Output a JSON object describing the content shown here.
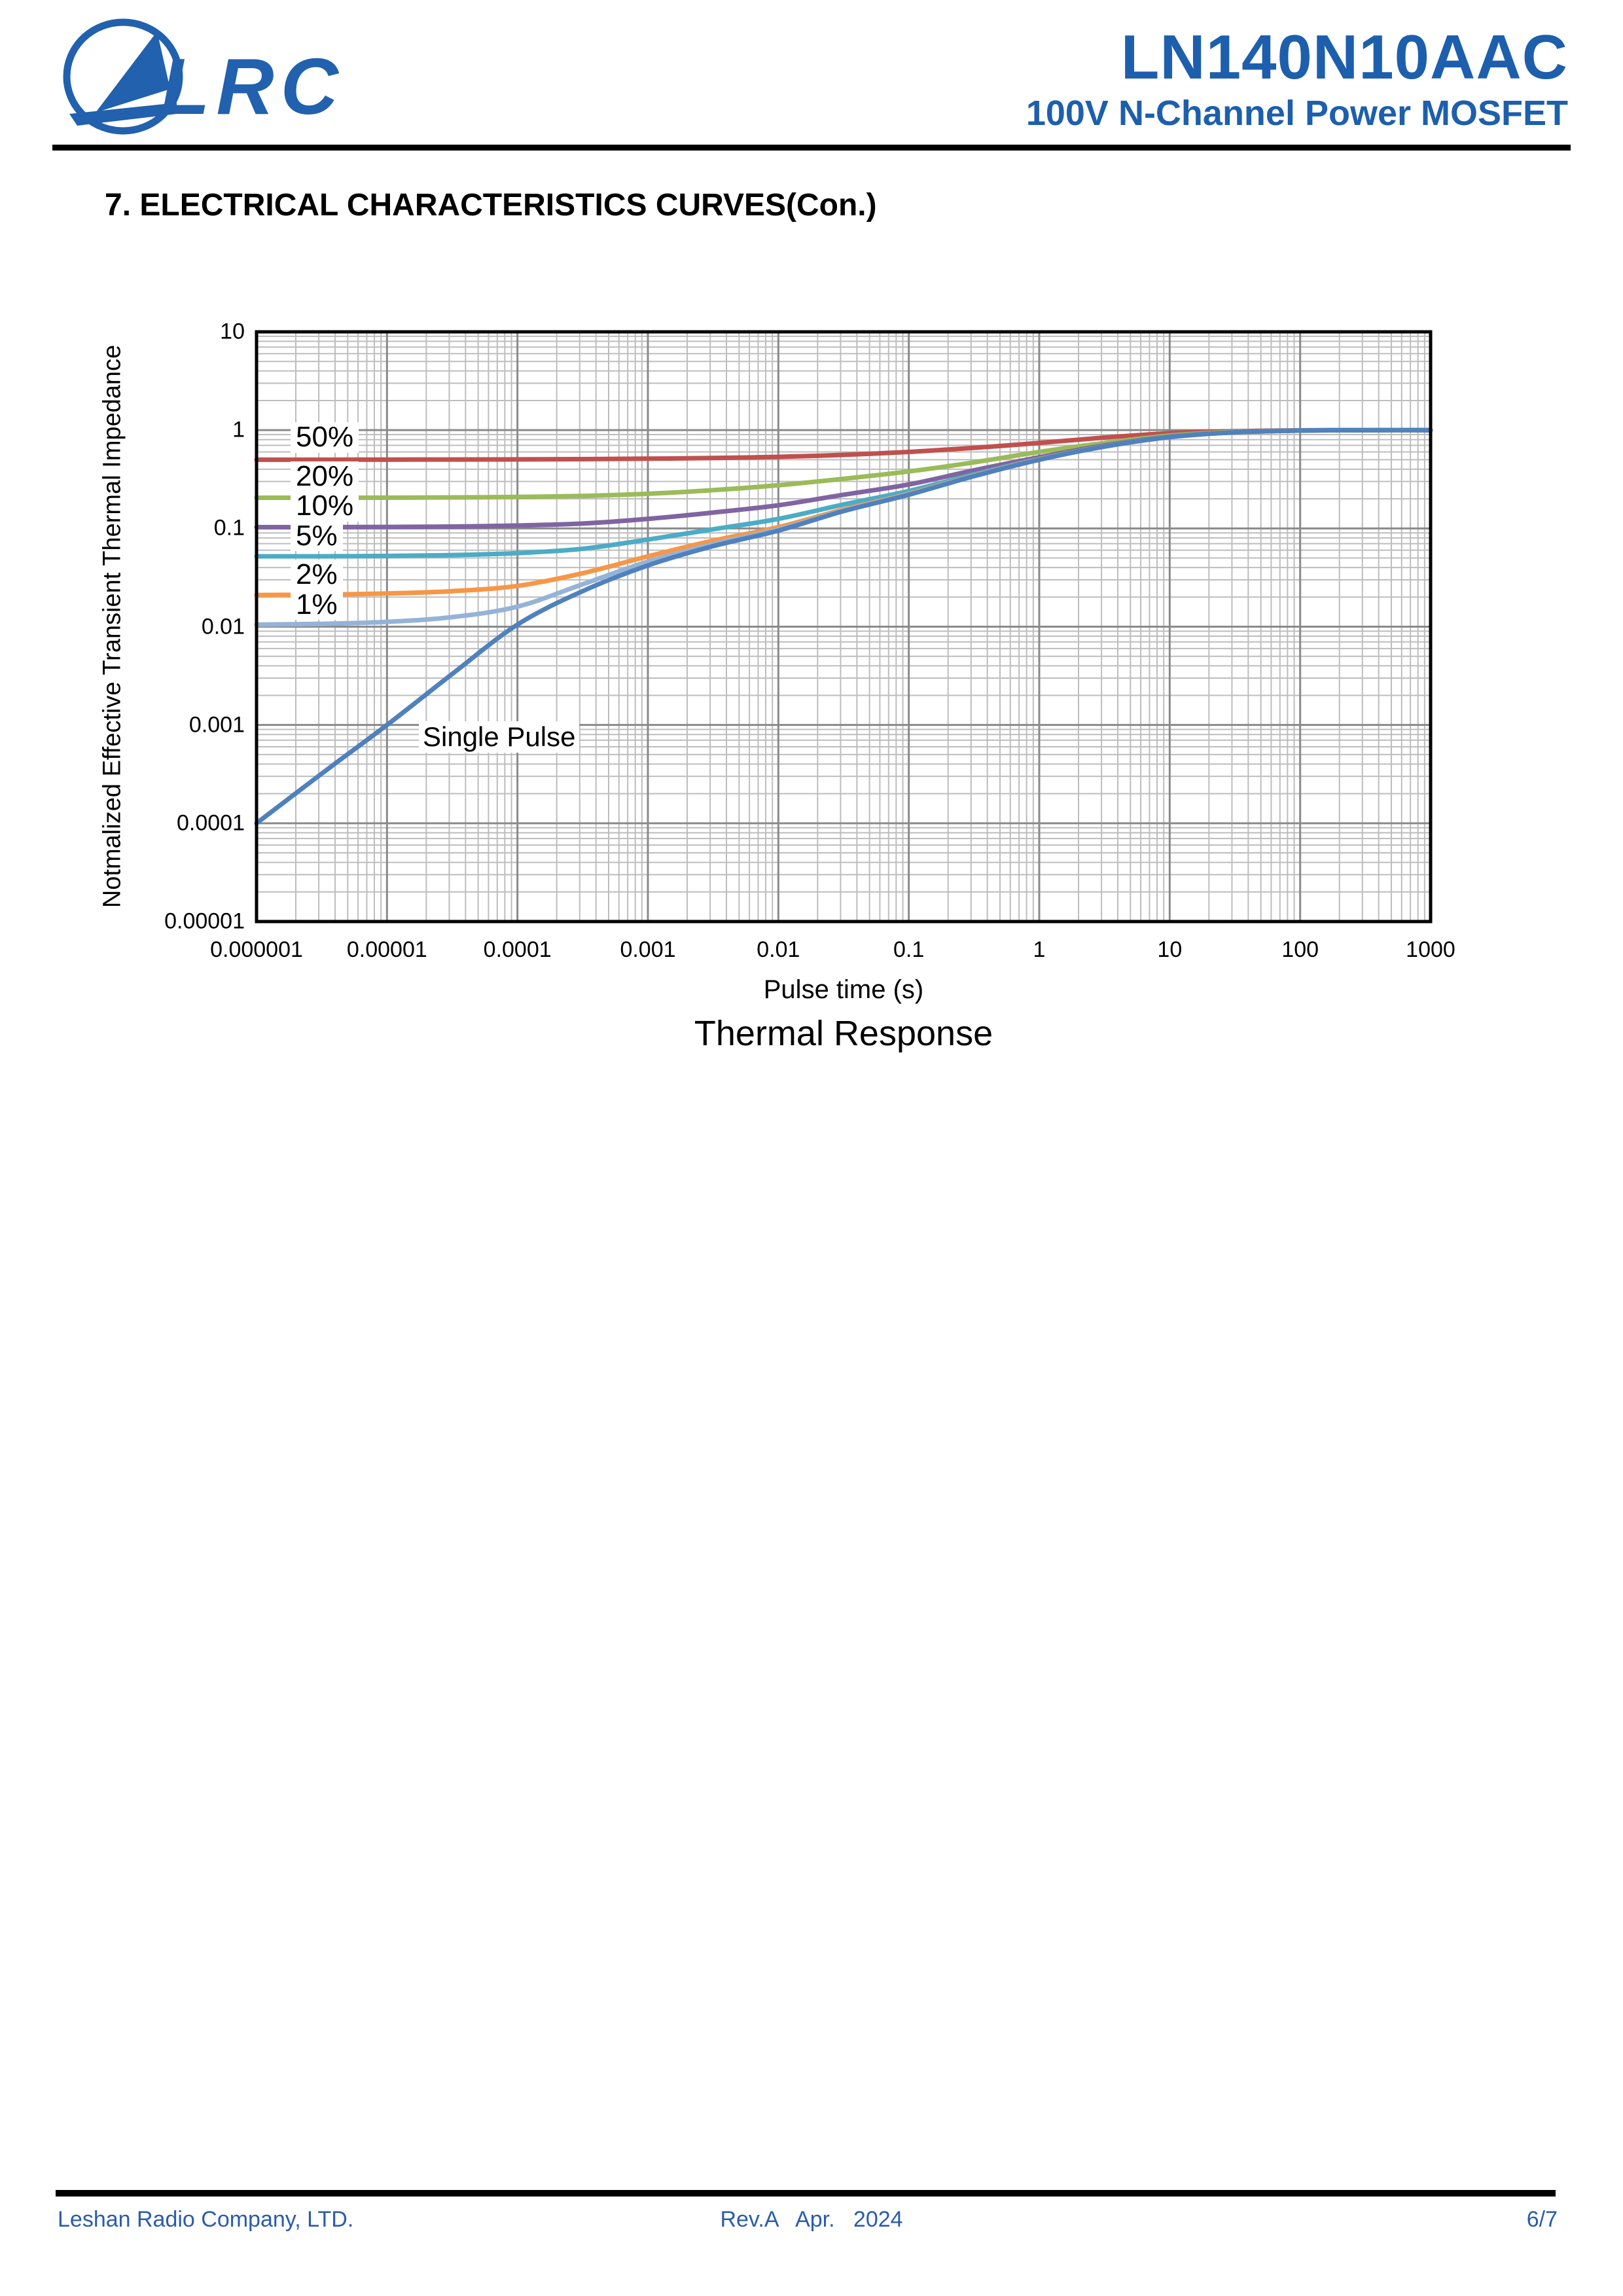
{
  "header": {
    "logo_text": "LRC",
    "part_number": "LN140N10AAC",
    "subtitle": "100V N-Channel Power MOSFET"
  },
  "section": {
    "title": "7. ELECTRICAL CHARACTERISTICS CURVES(Con.)"
  },
  "chart_data": {
    "type": "line",
    "title": "Thermal Response",
    "xlabel": "Pulse time (s)",
    "ylabel": "Notmalized Effective Transient Thermal Impedance",
    "x_scale": "log",
    "y_scale": "log",
    "xlim": [
      1e-06,
      1000
    ],
    "ylim": [
      1e-05,
      10
    ],
    "grid": {
      "minor": true,
      "minor_color": "#bdbdbd",
      "major_color": "#8a8a8a",
      "border_color": "#000000"
    },
    "legend_position": "inline-labels-left",
    "x_ticks": {
      "values": [
        1e-06,
        1e-05,
        0.0001,
        0.001,
        0.01,
        0.1,
        1,
        10,
        100,
        1000
      ],
      "labels": [
        "0.000001",
        "0.00001",
        "0.0001",
        "0.001",
        "0.01",
        "0.1",
        "1",
        "10",
        "100",
        "1000"
      ]
    },
    "y_ticks": {
      "values": [
        10,
        1,
        0.1,
        0.01,
        0.001,
        0.0001,
        1e-05
      ],
      "labels": [
        "10",
        "1",
        "0.1",
        "0.01",
        "0.001",
        "0.0001",
        "0.00001"
      ]
    },
    "x_common": [
      1e-06,
      3.16e-06,
      1e-05,
      3.16e-05,
      0.0001,
      0.000316,
      0.001,
      0.00316,
      0.01,
      0.0316,
      0.1,
      0.316,
      1,
      3.16,
      10,
      31.6,
      100,
      316,
      1000
    ],
    "series": [
      {
        "name": "50%",
        "duty": 0.5,
        "color": "#C0504D",
        "y": [
          0.5,
          0.5,
          0.501,
          0.502,
          0.504,
          0.507,
          0.512,
          0.52,
          0.535,
          0.56,
          0.6,
          0.66,
          0.74,
          0.84,
          0.93,
          0.975,
          0.995,
          1.0,
          1.0
        ]
      },
      {
        "name": "20%",
        "duty": 0.2,
        "color": "#9BBB59",
        "y": [
          0.205,
          0.205,
          0.2055,
          0.2065,
          0.209,
          0.214,
          0.225,
          0.245,
          0.275,
          0.32,
          0.38,
          0.47,
          0.6,
          0.74,
          0.88,
          0.96,
          0.992,
          1.0,
          1.0
        ]
      },
      {
        "name": "10%",
        "duty": 0.1,
        "color": "#8064A2",
        "y": [
          0.103,
          0.103,
          0.1035,
          0.1045,
          0.107,
          0.112,
          0.125,
          0.145,
          0.172,
          0.22,
          0.28,
          0.39,
          0.53,
          0.7,
          0.86,
          0.952,
          0.99,
          1.0,
          1.0
        ]
      },
      {
        "name": "5%",
        "duty": 0.05,
        "color": "#4BACC6",
        "y": [
          0.052,
          0.052,
          0.0525,
          0.0535,
          0.056,
          0.062,
          0.077,
          0.098,
          0.125,
          0.175,
          0.24,
          0.355,
          0.51,
          0.685,
          0.855,
          0.95,
          0.99,
          1.0,
          1.0
        ]
      },
      {
        "name": "2%",
        "duty": 0.02,
        "color": "#F79646",
        "y": [
          0.021,
          0.0212,
          0.0218,
          0.023,
          0.026,
          0.035,
          0.052,
          0.075,
          0.103,
          0.156,
          0.225,
          0.345,
          0.505,
          0.682,
          0.85,
          0.95,
          0.99,
          1.0,
          1.0
        ]
      },
      {
        "name": "1%",
        "duty": 0.01,
        "color": "#95B3D7",
        "y": [
          0.0105,
          0.0107,
          0.0112,
          0.0125,
          0.016,
          0.027,
          0.046,
          0.069,
          0.098,
          0.152,
          0.222,
          0.342,
          0.5,
          0.68,
          0.85,
          0.95,
          0.99,
          1.0,
          1.0
        ]
      },
      {
        "name": "Single Pulse",
        "duty": null,
        "color": "#4F81BD",
        "y": [
          0.0001,
          0.00032,
          0.001,
          0.0033,
          0.0105,
          0.023,
          0.042,
          0.066,
          0.095,
          0.15,
          0.22,
          0.34,
          0.5,
          0.68,
          0.85,
          0.95,
          0.99,
          1.0,
          1.0
        ]
      }
    ],
    "annotations": [
      {
        "text": "Single Pulse"
      }
    ]
  },
  "footer": {
    "company": "Leshan Radio Company, LTD.",
    "revision": "Rev.A   Apr.   2024",
    "page": "6/7"
  }
}
